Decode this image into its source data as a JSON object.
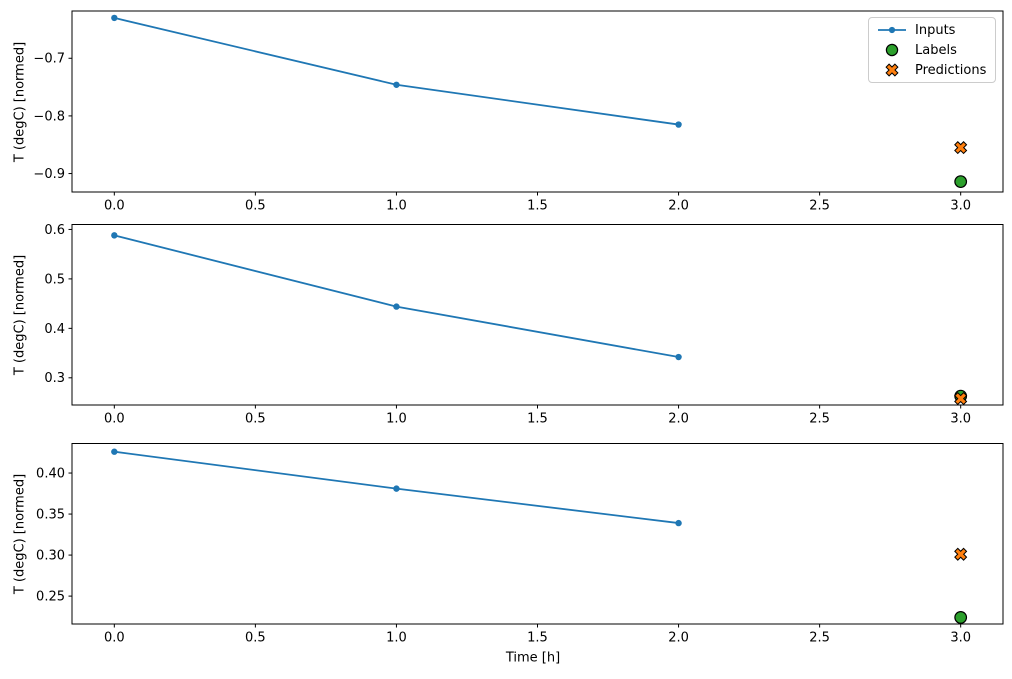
{
  "figure": {
    "background": "#ffffff",
    "axis_color": "#000000",
    "legend": {
      "position": "upper right",
      "items": [
        {
          "label": "Inputs",
          "icon": "line-dot-icon",
          "color": "#1f77b4"
        },
        {
          "label": "Labels",
          "icon": "circle-icon",
          "color": "#2ca02c",
          "edge": "#000000"
        },
        {
          "label": "Predictions",
          "icon": "x-icon",
          "color": "#ff7f0e",
          "edge": "#000000"
        }
      ]
    }
  },
  "chart_data": [
    {
      "type": "line",
      "title": "",
      "xlabel": "",
      "ylabel": "T (degC) [normed]",
      "xlim": [
        -0.15,
        3.15
      ],
      "ylim": [
        -0.932,
        -0.618
      ],
      "xticks": [
        0.0,
        0.5,
        1.0,
        1.5,
        2.0,
        2.5,
        3.0
      ],
      "xtick_labels": [
        "0.0",
        "0.5",
        "1.0",
        "1.5",
        "2.0",
        "2.5",
        "3.0"
      ],
      "yticks": [
        -0.7,
        -0.8,
        -0.9
      ],
      "ytick_labels": [
        "−0.7",
        "−0.8",
        "−0.9"
      ],
      "grid": false,
      "legend_visible": true,
      "series": [
        {
          "name": "Inputs",
          "kind": "line",
          "marker": "dot",
          "color": "#1f77b4",
          "x": [
            0,
            1,
            2
          ],
          "y": [
            -0.63,
            -0.746,
            -0.815
          ]
        },
        {
          "name": "Labels",
          "kind": "scatter",
          "marker": "circle",
          "color": "#2ca02c",
          "edge": "#000000",
          "x": [
            3
          ],
          "y": [
            -0.914
          ]
        },
        {
          "name": "Predictions",
          "kind": "scatter",
          "marker": "X",
          "color": "#ff7f0e",
          "edge": "#000000",
          "x": [
            3
          ],
          "y": [
            -0.855
          ]
        }
      ]
    },
    {
      "type": "line",
      "title": "",
      "xlabel": "",
      "ylabel": "T (degC) [normed]",
      "xlim": [
        -0.15,
        3.15
      ],
      "ylim": [
        0.245,
        0.61
      ],
      "xticks": [
        0.0,
        0.5,
        1.0,
        1.5,
        2.0,
        2.5,
        3.0
      ],
      "xtick_labels": [
        "0.0",
        "0.5",
        "1.0",
        "1.5",
        "2.0",
        "2.5",
        "3.0"
      ],
      "yticks": [
        0.3,
        0.4,
        0.5,
        0.6
      ],
      "ytick_labels": [
        "0.3",
        "0.4",
        "0.5",
        "0.6"
      ],
      "grid": false,
      "legend_visible": false,
      "series": [
        {
          "name": "Inputs",
          "kind": "line",
          "marker": "dot",
          "color": "#1f77b4",
          "x": [
            0,
            1,
            2
          ],
          "y": [
            0.588,
            0.444,
            0.342
          ]
        },
        {
          "name": "Labels",
          "kind": "scatter",
          "marker": "circle",
          "color": "#2ca02c",
          "edge": "#000000",
          "x": [
            3
          ],
          "y": [
            0.263
          ]
        },
        {
          "name": "Predictions",
          "kind": "scatter",
          "marker": "X",
          "color": "#ff7f0e",
          "edge": "#000000",
          "x": [
            3
          ],
          "y": [
            0.258
          ]
        }
      ]
    },
    {
      "type": "line",
      "title": "",
      "xlabel": "Time [h]",
      "ylabel": "T (degC) [normed]",
      "xlim": [
        -0.15,
        3.15
      ],
      "ylim": [
        0.216,
        0.436
      ],
      "xticks": [
        0.0,
        0.5,
        1.0,
        1.5,
        2.0,
        2.5,
        3.0
      ],
      "xtick_labels": [
        "0.0",
        "0.5",
        "1.0",
        "1.5",
        "2.0",
        "2.5",
        "3.0"
      ],
      "yticks": [
        0.25,
        0.3,
        0.35,
        0.4
      ],
      "ytick_labels": [
        "0.25",
        "0.30",
        "0.35",
        "0.40"
      ],
      "grid": false,
      "legend_visible": false,
      "series": [
        {
          "name": "Inputs",
          "kind": "line",
          "marker": "dot",
          "color": "#1f77b4",
          "x": [
            0,
            1,
            2
          ],
          "y": [
            0.426,
            0.381,
            0.339
          ]
        },
        {
          "name": "Labels",
          "kind": "scatter",
          "marker": "circle",
          "color": "#2ca02c",
          "edge": "#000000",
          "x": [
            3
          ],
          "y": [
            0.224
          ]
        },
        {
          "name": "Predictions",
          "kind": "scatter",
          "marker": "X",
          "color": "#ff7f0e",
          "edge": "#000000",
          "x": [
            3
          ],
          "y": [
            0.301
          ]
        }
      ]
    }
  ]
}
